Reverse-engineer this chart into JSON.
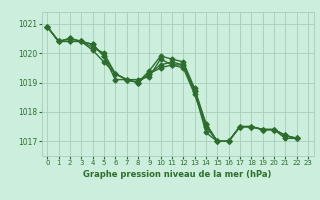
{
  "background_color": "#cceedd",
  "grid_color": "#aaccbb",
  "line_color": "#2d6e2d",
  "text_color": "#2d6e2d",
  "xlabel": "Graphe pression niveau de la mer (hPa)",
  "ylim": [
    1016.5,
    1021.4
  ],
  "xlim": [
    -0.5,
    23.5
  ],
  "yticks": [
    1017,
    1018,
    1019,
    1020,
    1021
  ],
  "xticks": [
    0,
    1,
    2,
    3,
    4,
    5,
    6,
    7,
    8,
    9,
    10,
    11,
    12,
    13,
    14,
    15,
    16,
    17,
    18,
    19,
    20,
    21,
    22,
    23
  ],
  "series": [
    [
      1020.9,
      1020.4,
      1020.4,
      1020.4,
      1020.3,
      1019.9,
      1019.1,
      1019.1,
      1019.1,
      1019.2,
      1019.8,
      1019.6,
      1019.6,
      1018.7,
      1017.3,
      1017.0,
      1017.0,
      1017.5,
      1017.5,
      1017.4,
      1017.4,
      1017.1,
      1017.1
    ],
    [
      1020.9,
      1020.4,
      1020.4,
      1020.4,
      1020.3,
      1019.9,
      1019.3,
      1019.1,
      1019.0,
      1019.3,
      1019.5,
      1019.6,
      1019.5,
      1018.6,
      1017.5,
      1017.0,
      1017.0,
      1017.5,
      1017.5,
      1017.4,
      1017.4,
      1017.2,
      1017.1
    ],
    [
      1020.9,
      1020.4,
      1020.5,
      1020.4,
      1020.1,
      1019.7,
      1019.3,
      1019.1,
      1019.0,
      1019.4,
      1019.9,
      1019.8,
      1019.7,
      1018.8,
      1017.6,
      1017.0,
      1017.0,
      1017.5,
      1017.5,
      1017.4,
      1017.4,
      1017.2,
      1017.1
    ],
    [
      1020.9,
      1020.4,
      1020.5,
      1020.4,
      1020.2,
      1020.0,
      1019.3,
      1019.1,
      1019.0,
      1019.3,
      1019.6,
      1019.7,
      1019.6,
      1018.7,
      1017.6,
      1017.0,
      1017.0,
      1017.5,
      1017.5,
      1017.4,
      1017.4,
      1017.2,
      1017.1
    ]
  ],
  "marker": "D",
  "markersize": 2.5,
  "linewidth": 1.0
}
